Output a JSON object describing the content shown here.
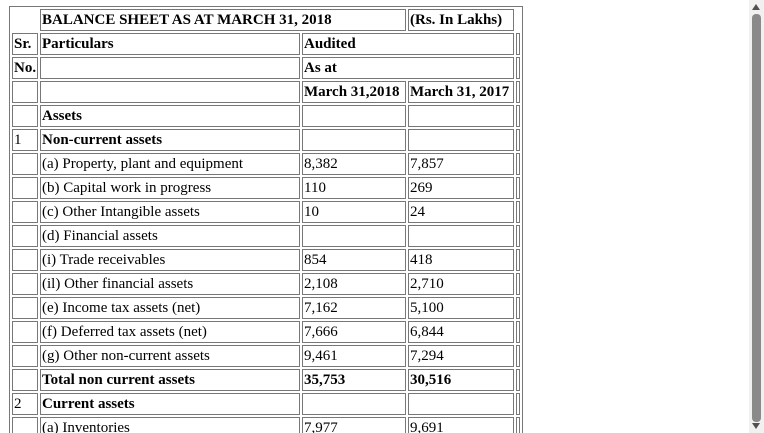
{
  "header": {
    "title": "BALANCE SHEET AS AT MARCH 31, 2018",
    "unit": "(Rs. In Lakhs)",
    "sr_line1": "Sr.",
    "sr_line2": "No.",
    "particulars": "Particulars",
    "audited": "Audited",
    "as_at": "As at",
    "col_2018": "March 31,2018",
    "col_2017": "March 31, 2017"
  },
  "rows": [
    {
      "sr": "",
      "label": "Assets",
      "v2018": "",
      "v2017": "",
      "bold": true
    },
    {
      "sr": "1",
      "label": "Non-current assets",
      "v2018": "",
      "v2017": "",
      "bold": true
    },
    {
      "sr": "",
      "label": "(a) Property, plant and equipment",
      "v2018": "8,382",
      "v2017": "7,857",
      "bold": false
    },
    {
      "sr": "",
      "label": "(b) Capital work in progress",
      "v2018": "110",
      "v2017": "269",
      "bold": false
    },
    {
      "sr": "",
      "label": "(c) Other Intangible assets",
      "v2018": "10",
      "v2017": "24",
      "bold": false
    },
    {
      "sr": "",
      "label": "(d) Financial assets",
      "v2018": "",
      "v2017": "",
      "bold": false
    },
    {
      "sr": "",
      "label": "(i) Trade receivables",
      "v2018": "854",
      "v2017": "418",
      "bold": false
    },
    {
      "sr": "",
      "label": "(il) Other financial assets",
      "v2018": "2,108",
      "v2017": "2,710",
      "bold": false
    },
    {
      "sr": "",
      "label": "(e) Income tax assets (net)",
      "v2018": "7,162",
      "v2017": "5,100",
      "bold": false
    },
    {
      "sr": "",
      "label": "(f) Deferred tax assets (net)",
      "v2018": "7,666",
      "v2017": "6,844",
      "bold": false
    },
    {
      "sr": "",
      "label": "(g) Other non-current assets",
      "v2018": "9,461",
      "v2017": "7,294",
      "bold": false
    },
    {
      "sr": "",
      "label": "Total non current assets",
      "v2018": "35,753",
      "v2017": "30,516",
      "bold": true
    },
    {
      "sr": "2",
      "label": "Current assets",
      "v2018": "",
      "v2017": "",
      "bold": true
    },
    {
      "sr": "",
      "label": "(a) Inventories",
      "v2018": "7,977",
      "v2017": "9,691",
      "bold": false
    }
  ]
}
